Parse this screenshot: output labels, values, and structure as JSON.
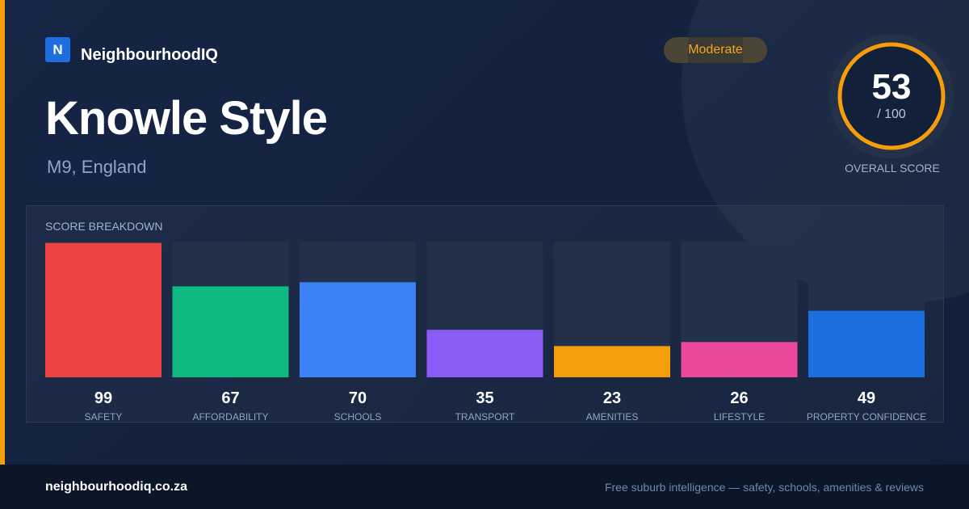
{
  "brand": {
    "logo_letter": "N",
    "name": "NeighbourhoodIQ"
  },
  "suburb": {
    "name": "Knowle Style",
    "location": "M9, England"
  },
  "badge": {
    "label": "Moderate"
  },
  "overall": {
    "score": 53,
    "max_label": "/ 100",
    "caption": "OVERALL SCORE",
    "color": "#f59e0b"
  },
  "breakdown": {
    "title": "SCORE BREAKDOWN"
  },
  "chart_data": {
    "type": "bar",
    "categories": [
      "SAFETY",
      "AFFORDABILITY",
      "SCHOOLS",
      "TRANSPORT",
      "AMENITIES",
      "LIFESTYLE",
      "PROPERTY CONFIDENCE"
    ],
    "values": [
      99,
      67,
      70,
      35,
      23,
      26,
      49
    ],
    "colors": [
      "#ef4444",
      "#10b981",
      "#3b82f6",
      "#8b5cf6",
      "#f59e0b",
      "#ec4899",
      "#1d6fe0"
    ],
    "ylim": [
      0,
      100
    ],
    "grid": false,
    "legend": "none"
  },
  "footer": {
    "url": "neighbourhoodiq.co.za",
    "tagline": "Free suburb intelligence — safety, schools, amenities & reviews"
  }
}
